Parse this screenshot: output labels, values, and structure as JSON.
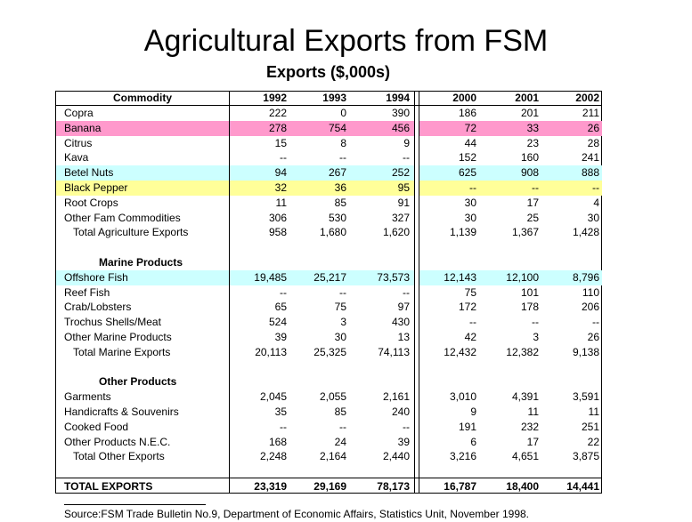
{
  "title": "Agricultural Exports from FSM",
  "subtitle": "Exports ($,000s)",
  "colors": {
    "pink": "#ff99cc",
    "cyan": "#ccffff",
    "yellow": "#ffff99"
  },
  "header": {
    "commodity": "Commodity",
    "years": [
      "1992",
      "1993",
      "1994",
      "2000",
      "2001",
      "2002"
    ]
  },
  "rows": [
    {
      "label": "Copra",
      "vals": [
        "222",
        "0",
        "390",
        "186",
        "201",
        "211"
      ],
      "kind": "item"
    },
    {
      "label": "Banana",
      "vals": [
        "278",
        "754",
        "456",
        "72",
        "33",
        "26"
      ],
      "kind": "item",
      "hl": "pink"
    },
    {
      "label": "Citrus",
      "vals": [
        "15",
        "8",
        "9",
        "44",
        "23",
        "28"
      ],
      "kind": "item"
    },
    {
      "label": "Kava",
      "vals": [
        "--",
        "--",
        "--",
        "152",
        "160",
        "241"
      ],
      "kind": "item"
    },
    {
      "label": "Betel Nuts",
      "vals": [
        "94",
        "267",
        "252",
        "625",
        "908",
        "888"
      ],
      "kind": "item",
      "hl": "cyan"
    },
    {
      "label": "Black Pepper",
      "vals": [
        "32",
        "36",
        "95",
        "--",
        "--",
        "--"
      ],
      "kind": "item",
      "hl": "yellow"
    },
    {
      "label": "Root Crops",
      "vals": [
        "11",
        "85",
        "91",
        "30",
        "17",
        "4"
      ],
      "kind": "item"
    },
    {
      "label": "Other Fam Commodities",
      "vals": [
        "306",
        "530",
        "327",
        "30",
        "25",
        "30"
      ],
      "kind": "item"
    },
    {
      "label": "Total Agriculture Exports",
      "vals": [
        "958",
        "1,680",
        "1,620",
        "1,139",
        "1,367",
        "1,428"
      ],
      "kind": "total"
    },
    {
      "label": "",
      "vals": [
        "",
        "",
        "",
        "",
        "",
        ""
      ],
      "kind": "blank"
    },
    {
      "label": "Marine Products",
      "vals": [
        "",
        "",
        "",
        "",
        "",
        ""
      ],
      "kind": "section"
    },
    {
      "label": "Offshore Fish",
      "vals": [
        "19,485",
        "25,217",
        "73,573",
        "12,143",
        "12,100",
        "8,796"
      ],
      "kind": "item",
      "hl": "cyan"
    },
    {
      "label": "Reef Fish",
      "vals": [
        "--",
        "--",
        "--",
        "75",
        "101",
        "110"
      ],
      "kind": "item"
    },
    {
      "label": "Crab/Lobsters",
      "vals": [
        "65",
        "75",
        "97",
        "172",
        "178",
        "206"
      ],
      "kind": "item"
    },
    {
      "label": "Trochus Shells/Meat",
      "vals": [
        "524",
        "3",
        "430",
        "--",
        "--",
        "--"
      ],
      "kind": "item"
    },
    {
      "label": "Other Marine Products",
      "vals": [
        "39",
        "30",
        "13",
        "42",
        "3",
        "26"
      ],
      "kind": "item"
    },
    {
      "label": "Total Marine Exports",
      "vals": [
        "20,113",
        "25,325",
        "74,113",
        "12,432",
        "12,382",
        "9,138"
      ],
      "kind": "total"
    },
    {
      "label": "",
      "vals": [
        "",
        "",
        "",
        "",
        "",
        ""
      ],
      "kind": "blank"
    },
    {
      "label": "Other Products",
      "vals": [
        "",
        "",
        "",
        "",
        "",
        ""
      ],
      "kind": "section"
    },
    {
      "label": "Garments",
      "vals": [
        "2,045",
        "2,055",
        "2,161",
        "3,010",
        "4,391",
        "3,591"
      ],
      "kind": "item"
    },
    {
      "label": "Handicrafts & Souvenirs",
      "vals": [
        "35",
        "85",
        "240",
        "9",
        "11",
        "11"
      ],
      "kind": "item"
    },
    {
      "label": "Cooked Food",
      "vals": [
        "--",
        "--",
        "--",
        "191",
        "232",
        "251"
      ],
      "kind": "item"
    },
    {
      "label": "Other Products N.E.C.",
      "vals": [
        "168",
        "24",
        "39",
        "6",
        "17",
        "22"
      ],
      "kind": "item"
    },
    {
      "label": "Total Other Exports",
      "vals": [
        "2,248",
        "2,164",
        "2,440",
        "3,216",
        "4,651",
        "3,875"
      ],
      "kind": "total"
    }
  ],
  "grand_total": {
    "label": "TOTAL EXPORTS",
    "vals": [
      "23,319",
      "29,169",
      "78,173",
      "16,787",
      "18,400",
      "14,441"
    ]
  },
  "source": "Source:FSM Trade Bulletin No.9, Department of Economic Affairs, Statistics Unit, November 1998."
}
